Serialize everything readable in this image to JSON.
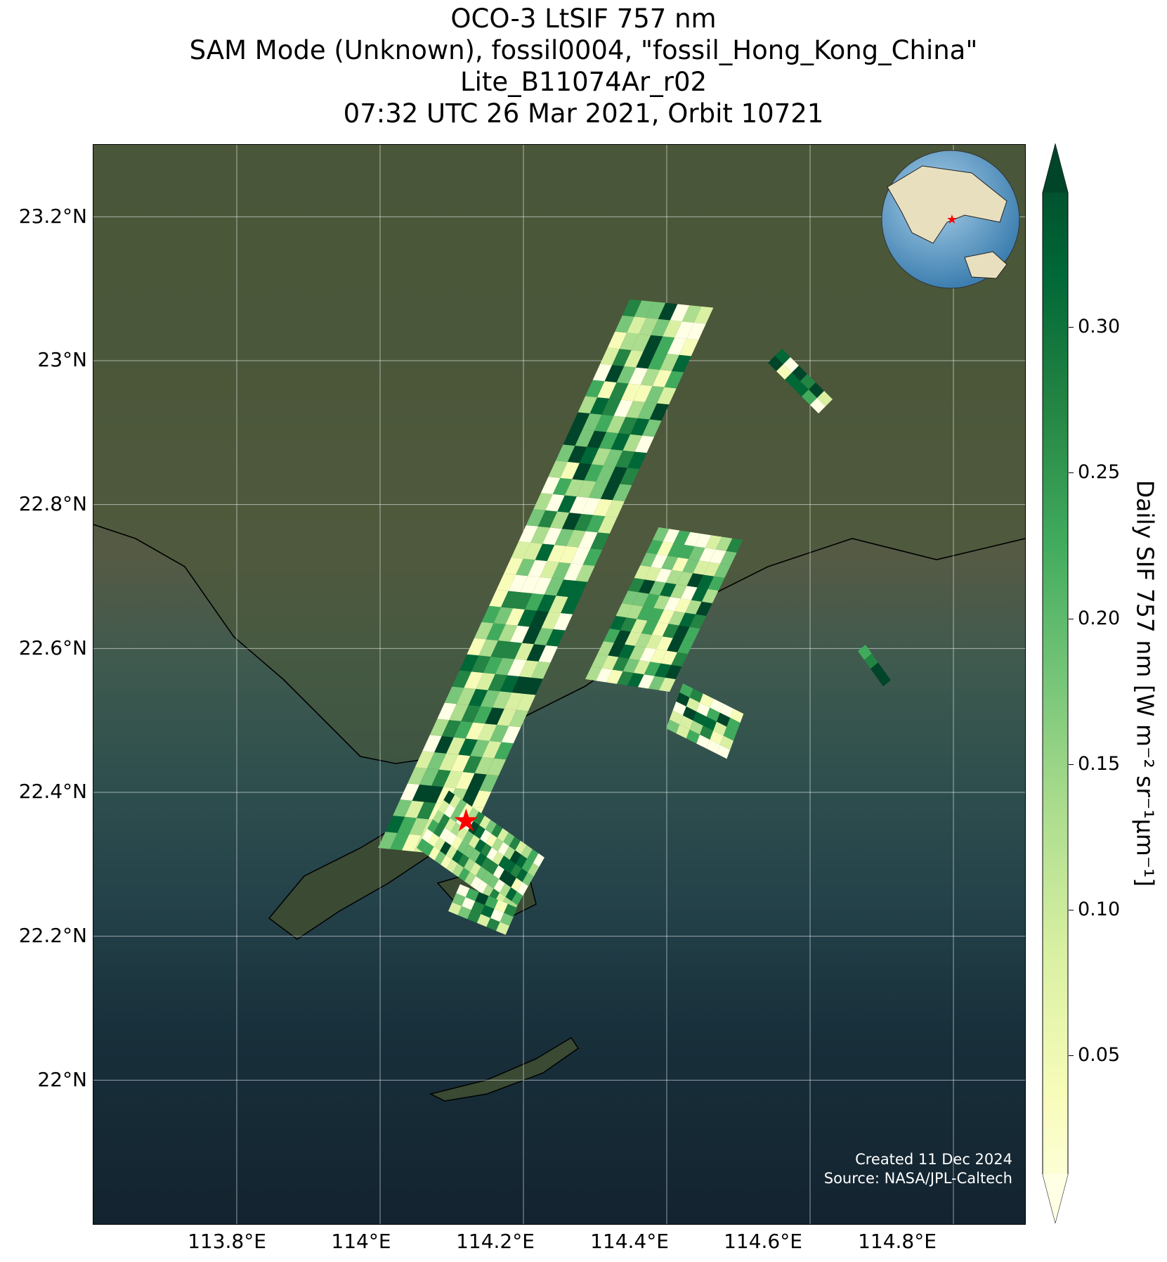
{
  "title": {
    "line1": "OCO-3 LtSIF 757 nm",
    "line2": "SAM Mode (Unknown), fossil0004, \"fossil_Hong_Kong_China\"",
    "line3": "Lite_B11074Ar_r02",
    "line4": "07:32 UTC 26 Mar 2021, Orbit 10721"
  },
  "map": {
    "lon_range": [
      113.6,
      114.9
    ],
    "lat_range": [
      21.8,
      23.3
    ],
    "lat_ticks": [
      "23.2°N",
      "23°N",
      "22.8°N",
      "22.6°N",
      "22.4°N",
      "22.2°N",
      "22°N"
    ],
    "lon_ticks": [
      "113.8°E",
      "114°E",
      "114.2°E",
      "114.4°E",
      "114.6°E",
      "114.8°E"
    ],
    "target_marker": {
      "lon": 114.12,
      "lat": 22.36,
      "color": "#ff0000"
    },
    "inset_globe": {
      "marker_color": "#ff0000"
    }
  },
  "colorbar": {
    "label": "Daily SIF 757 nm [W m⁻² sr⁻¹μm⁻¹]",
    "ticks": [
      "0.30",
      "0.25",
      "0.20",
      "0.15",
      "0.10",
      "0.05"
    ],
    "colormap": "YlGn",
    "extend": "both"
  },
  "credits": {
    "created": "Created 11 Dec 2024",
    "source": "Source: NASA/JPL-Caltech"
  },
  "colors": {
    "cmap": [
      "#ffffe5",
      "#f7fcb9",
      "#d9f0a3",
      "#addd8e",
      "#78c679",
      "#41ab5d",
      "#238443",
      "#006837",
      "#004529"
    ]
  }
}
